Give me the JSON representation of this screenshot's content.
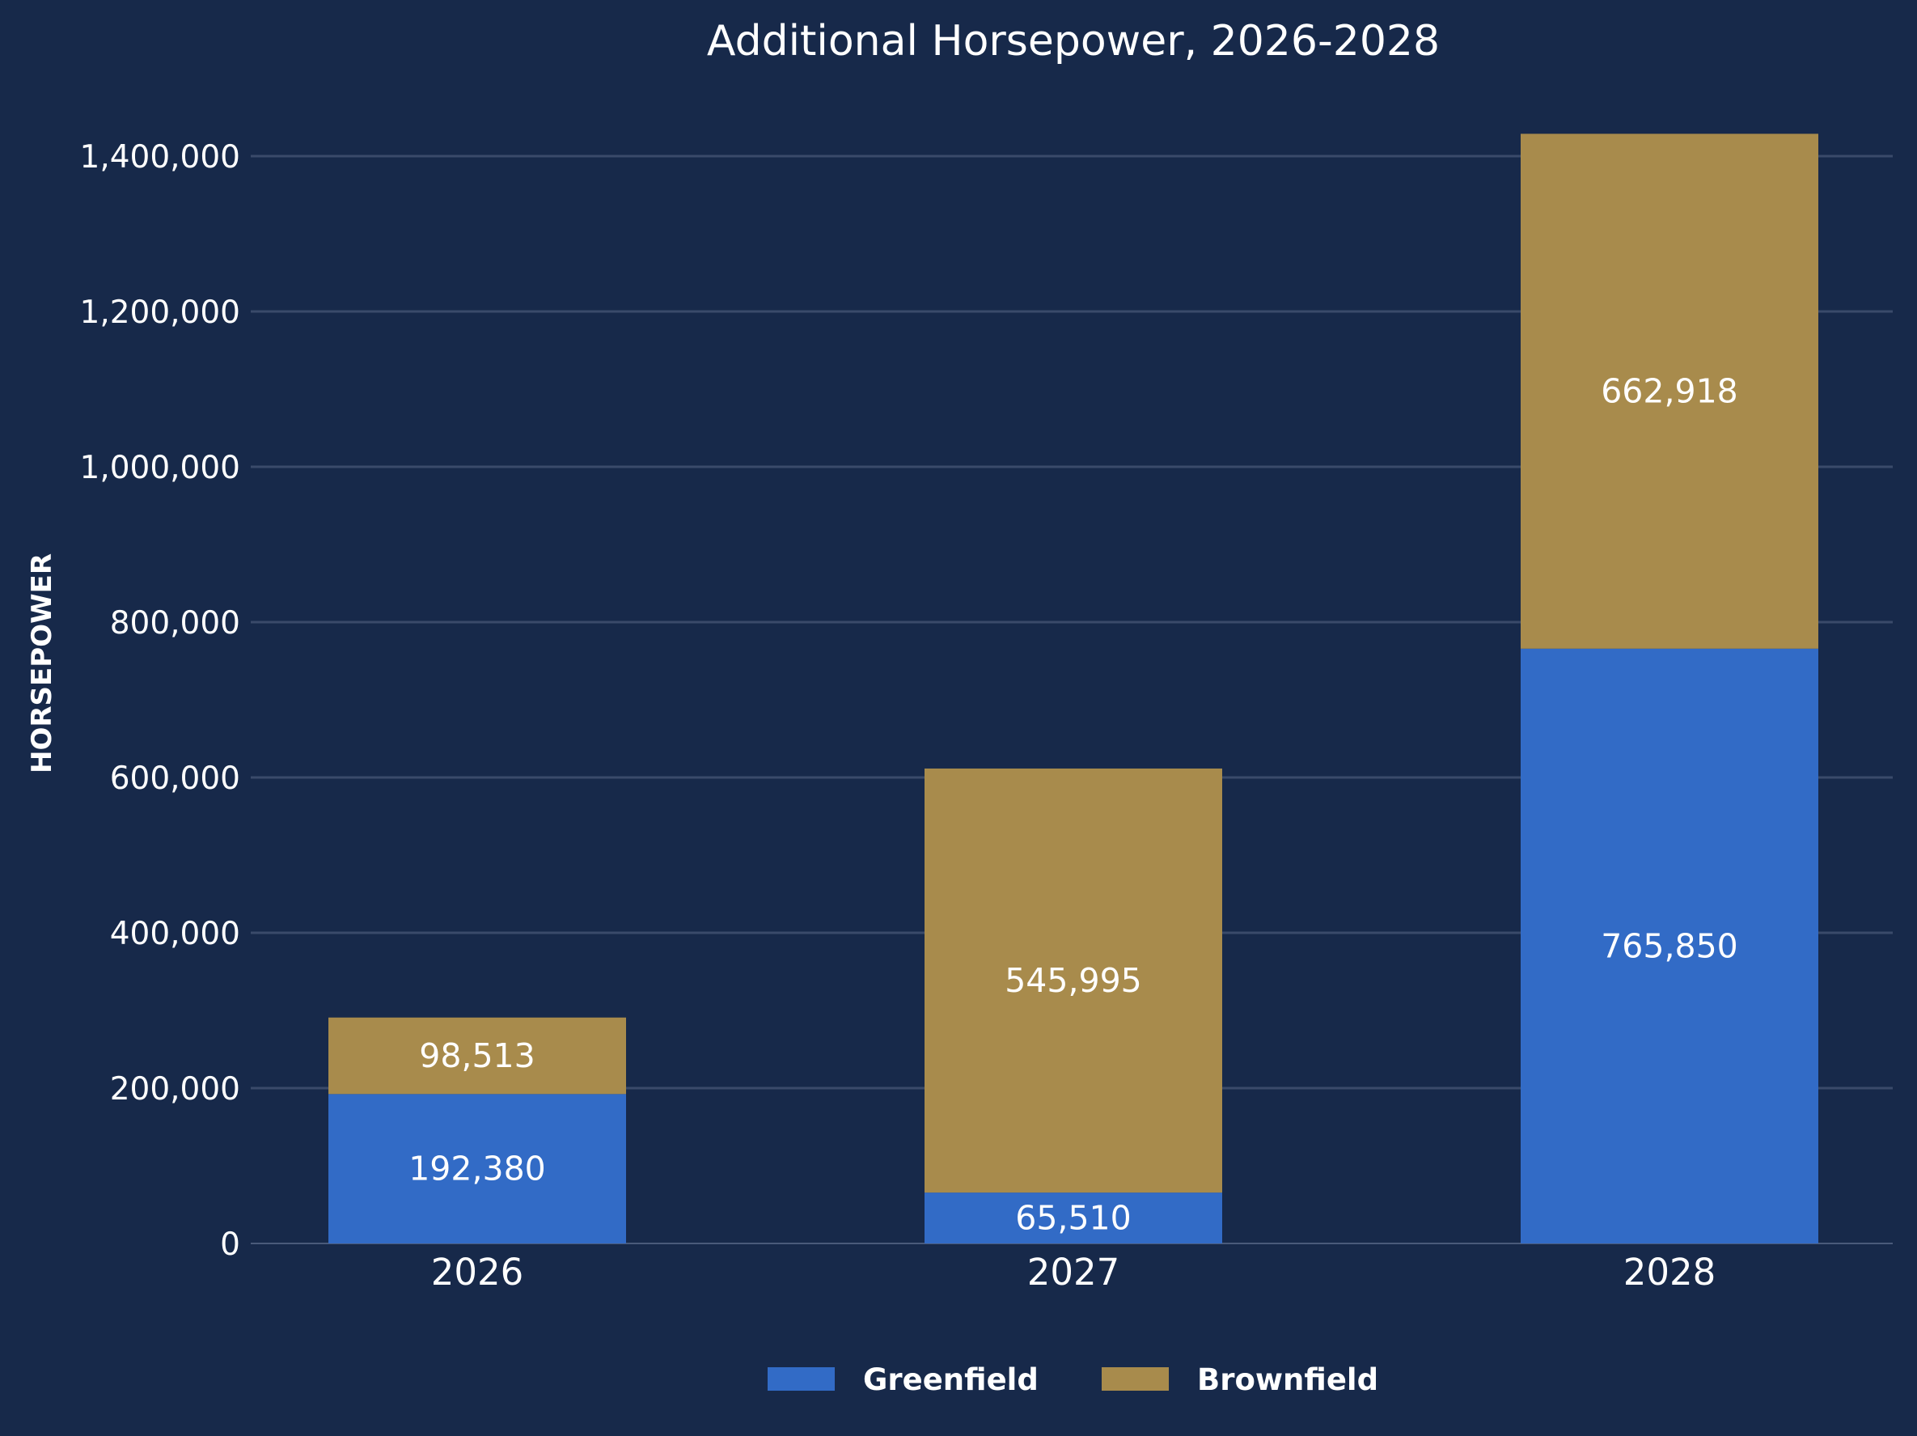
{
  "chart_data": {
    "type": "bar",
    "stacked": true,
    "title": "Additional Horsepower, 2026-2028",
    "xlabel": "",
    "ylabel": "HORSEPOWER",
    "categories": [
      "2026",
      "2027",
      "2028"
    ],
    "series": [
      {
        "name": "Greenfield",
        "values": [
          192380,
          65510,
          765850
        ],
        "labels": [
          "192,380",
          "65,510",
          "765,850"
        ],
        "color": "#326bc6"
      },
      {
        "name": "Brownfield",
        "values": [
          98513,
          545995,
          662918
        ],
        "labels": [
          "98,513",
          "545,995",
          "662,918"
        ],
        "color": "#a88b4c"
      }
    ],
    "ylim": [
      0,
      1400000
    ],
    "yticks": [
      0,
      200000,
      400000,
      600000,
      800000,
      1000000,
      1200000,
      1400000
    ],
    "ytick_labels": [
      "0",
      "200,000",
      "400,000",
      "600,000",
      "800,000",
      "1,000,000",
      "1,200,000",
      "1,400,000"
    ],
    "grid": true,
    "legend_position": "bottom-center",
    "colors": {
      "background": "#17294a",
      "gridline": "#3a4a6a",
      "text": "#ffffff"
    }
  }
}
